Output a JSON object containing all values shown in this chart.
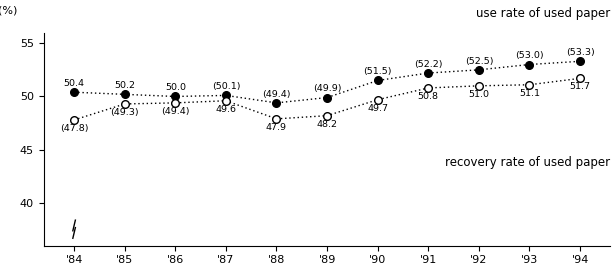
{
  "years": [
    "'84",
    "'85",
    "'86",
    "'87",
    "'88",
    "'89",
    "'90",
    "'91",
    "'92",
    "'93",
    "'94"
  ],
  "use_rate": [
    50.4,
    50.2,
    50.0,
    50.1,
    49.4,
    49.9,
    51.5,
    52.2,
    52.5,
    53.0,
    53.3
  ],
  "recovery_rate": [
    47.8,
    49.3,
    49.4,
    49.6,
    47.9,
    48.2,
    49.7,
    50.8,
    51.0,
    51.1,
    51.7
  ],
  "use_labels": [
    "50.4",
    "50.2",
    "50.0",
    "(50.1)",
    "(49.4)",
    "(49.9)",
    "(51.5)",
    "(52.2)",
    "(52.5)",
    "(53.0)",
    "(53.3)"
  ],
  "recovery_labels": [
    "(47.8)",
    "(49.3)",
    "(49.4)",
    "49.6",
    "47.9",
    "48.2",
    "49.7",
    "50.8",
    "51.0",
    "51.1",
    "51.7"
  ],
  "use_label_y_offset": [
    0.38,
    0.38,
    0.38,
    0.38,
    0.38,
    0.38,
    0.38,
    0.38,
    0.38,
    0.38,
    0.38
  ],
  "rec_label_y_offset": [
    -0.38,
    -0.38,
    -0.38,
    -0.38,
    -0.38,
    -0.38,
    -0.38,
    -0.38,
    -0.38,
    -0.38,
    -0.38
  ],
  "ylim": [
    36,
    56
  ],
  "yticks": [
    40,
    45,
    50,
    55
  ],
  "pct_label": "(%)",
  "use_series_label": "use rate of used paper",
  "rec_series_label": "recovery rate of used paper",
  "line_color": "#000000",
  "background_color": "#ffffff",
  "fontsize_ticks": 8,
  "fontsize_labels": 6.8,
  "fontsize_series": 8.5,
  "marker_size": 5.5
}
